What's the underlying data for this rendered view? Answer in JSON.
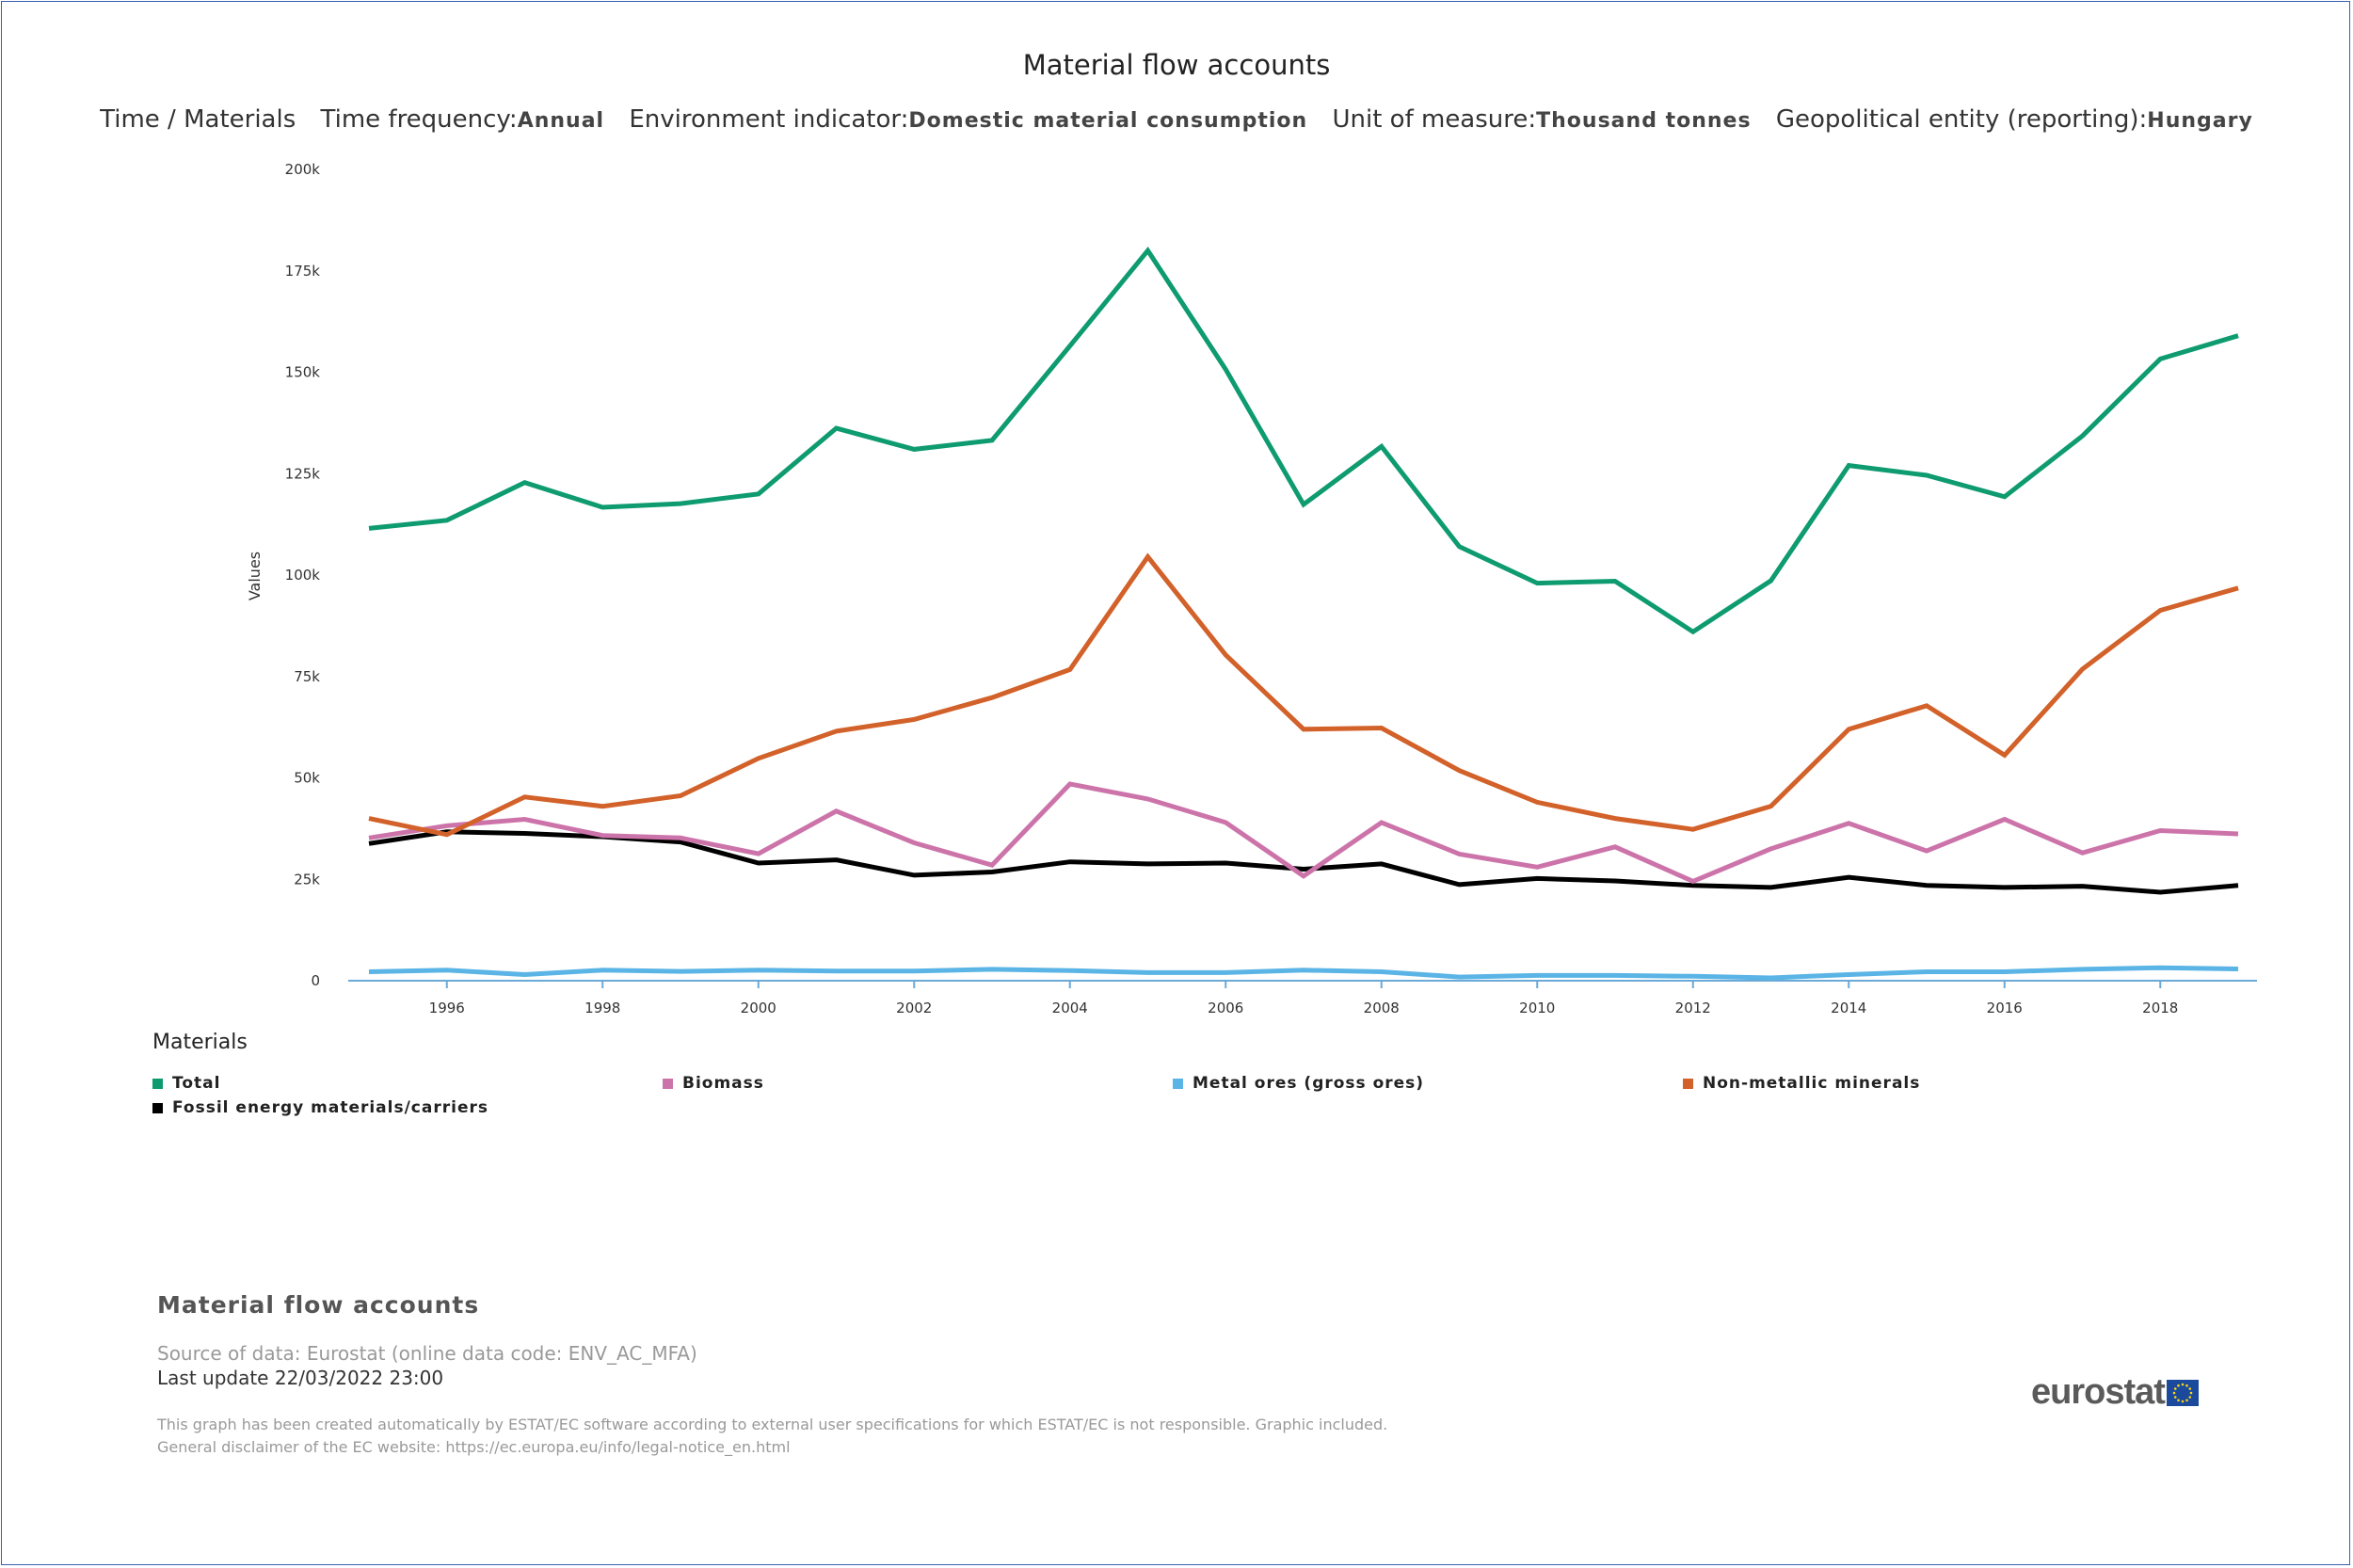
{
  "header": {
    "title": "Material flow accounts",
    "dims": "Time / Materials",
    "freq_label": "Time frequency:",
    "freq_value": "Annual",
    "ind_label": "Environment indicator:",
    "ind_value": "Domestic material consumption",
    "unit_label": "Unit of measure:",
    "unit_value": "Thousand tonnes",
    "geo_label": "Geopolitical entity (reporting):",
    "geo_value": "Hungary"
  },
  "legend": {
    "title": "Materials"
  },
  "footer": {
    "title": "Material flow accounts",
    "source": "Source of data: Eurostat (online data code: ENV_AC_MFA)",
    "last_update": "Last update 22/03/2022 23:00",
    "disclaimer1": "This graph has been created automatically by ESTAT/EC software according to external user specifications for which ESTAT/EC is not responsible. Graphic included.",
    "disclaimer2": "General disclaimer of the EC website: https://ec.europa.eu/info/legal-notice_en.html",
    "logo": "eurostat"
  },
  "chart_data": {
    "type": "line",
    "ylabel": "Values",
    "ylim": [
      0,
      200000
    ],
    "yticks": [
      0,
      25000,
      50000,
      75000,
      100000,
      125000,
      150000,
      175000,
      200000
    ],
    "ytick_labels": [
      "0",
      "25k",
      "50k",
      "75k",
      "100k",
      "125k",
      "150k",
      "175k",
      "200k"
    ],
    "xlim": [
      1995,
      2019
    ],
    "xticks": [
      1996,
      1998,
      2000,
      2002,
      2004,
      2006,
      2008,
      2010,
      2012,
      2014,
      2016,
      2018
    ],
    "x": [
      1995,
      1996,
      1997,
      1998,
      1999,
      2000,
      2001,
      2002,
      2003,
      2004,
      2005,
      2006,
      2007,
      2008,
      2009,
      2010,
      2011,
      2012,
      2013,
      2014,
      2015,
      2016,
      2017,
      2018,
      2019
    ],
    "grid": false,
    "legend_position": "bottom",
    "series": [
      {
        "name": "Total",
        "color": "#0e9b6f",
        "values": [
          111500,
          113500,
          122800,
          116700,
          117600,
          120000,
          136200,
          131000,
          133200,
          156500,
          180000,
          150700,
          117400,
          131700,
          107000,
          98000,
          98500,
          86000,
          98600,
          127000,
          124600,
          119300,
          134300,
          153300,
          159000
        ]
      },
      {
        "name": "Biomass",
        "color": "#cc74aa",
        "values": [
          35200,
          38200,
          39800,
          35800,
          35200,
          31300,
          41800,
          34000,
          28500,
          48500,
          44800,
          39000,
          25800,
          39000,
          31200,
          28000,
          33000,
          24500,
          32500,
          38800,
          32000,
          39800,
          31500,
          37000,
          36200
        ]
      },
      {
        "name": "Metal ores (gross ores)",
        "color": "#5ab4e5",
        "values": [
          2200,
          2600,
          1500,
          2600,
          2300,
          2600,
          2400,
          2400,
          2800,
          2500,
          2000,
          2000,
          2600,
          2200,
          900,
          1300,
          1300,
          1100,
          700,
          1500,
          2200,
          2200,
          2800,
          3200,
          2900
        ]
      },
      {
        "name": "Non-metallic minerals",
        "color": "#d2612a",
        "values": [
          40000,
          36000,
          45300,
          43000,
          45600,
          54800,
          61500,
          64400,
          69800,
          76700,
          104500,
          80300,
          62000,
          62300,
          51800,
          44000,
          40000,
          37300,
          43000,
          62000,
          67800,
          55600,
          76800,
          91300,
          96800
        ]
      },
      {
        "name": "Fossil energy materials/carriers",
        "color": "#000000",
        "values": [
          33800,
          36700,
          36300,
          35500,
          34200,
          29000,
          29800,
          26000,
          26800,
          29300,
          28800,
          29000,
          27500,
          28800,
          23700,
          25200,
          24600,
          23500,
          23000,
          25500,
          23500,
          23000,
          23300,
          21800,
          23500
        ]
      }
    ]
  }
}
